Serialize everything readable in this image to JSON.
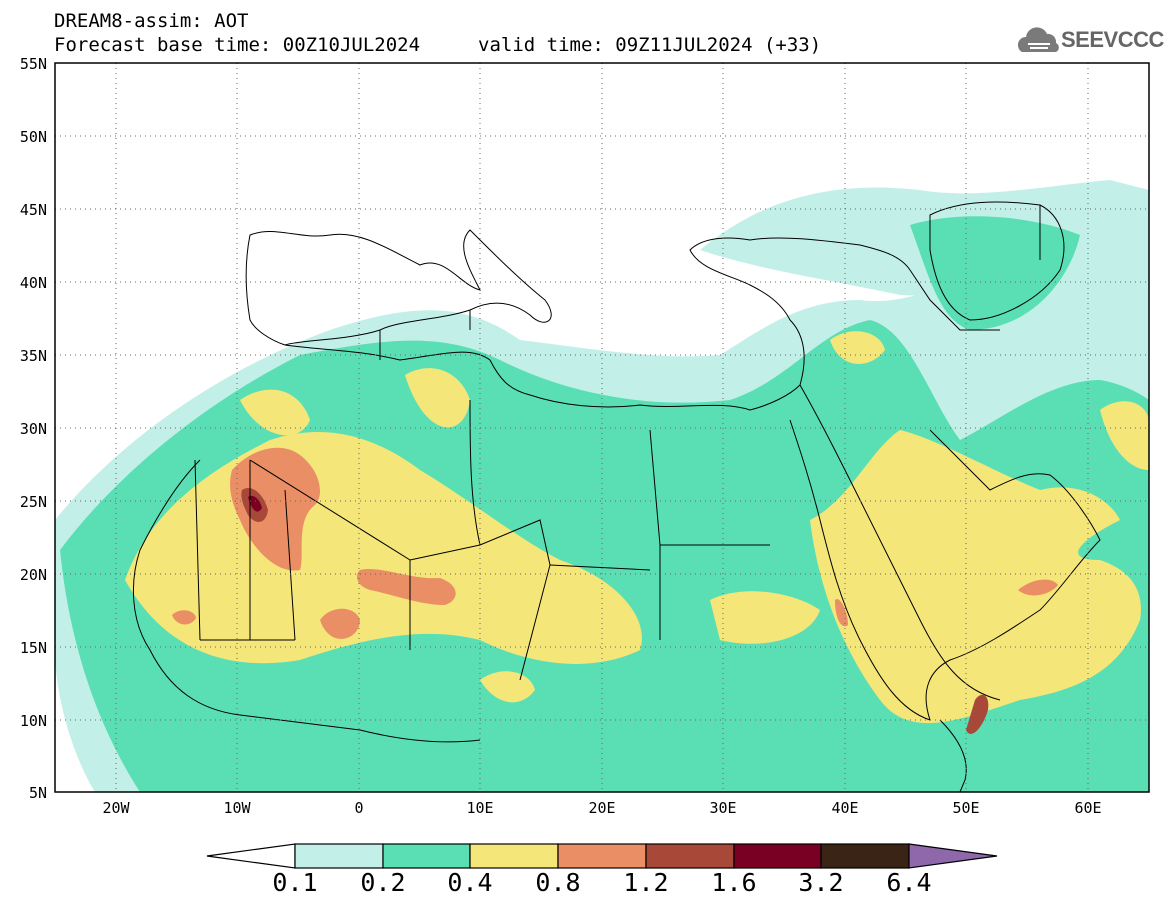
{
  "header": {
    "title": "DREAM8-assim: AOT",
    "base_time": "Forecast base time: 00Z10JUL2024",
    "valid_time": "valid time: 09Z11JUL2024 (+33)"
  },
  "logo": {
    "text": "SEEVCCC",
    "icon": "cloud-icon"
  },
  "map": {
    "variable": "Aerosol optical thickness",
    "lon_range": [
      -25,
      65
    ],
    "lat_range": [
      5,
      55
    ],
    "lat_labels": [
      "55N",
      "50N",
      "45N",
      "40N",
      "35N",
      "30N",
      "25N",
      "20N",
      "15N",
      "10N",
      "5N"
    ],
    "lon_labels": [
      "20W",
      "10W",
      "0",
      "10E",
      "20E",
      "30E",
      "40E",
      "50E",
      "60E"
    ],
    "gridlines": "dotted"
  },
  "colorbar": {
    "levels": [
      "0.1",
      "0.2",
      "0.4",
      "0.8",
      "1.2",
      "1.6",
      "3.2",
      "6.4"
    ],
    "colors": [
      "#ffffff",
      "#c2f0e9",
      "#5adfb4",
      "#f5e67a",
      "#ea8e66",
      "#a84838",
      "#7a0023",
      "#3a2415",
      "#8e68ab"
    ]
  }
}
